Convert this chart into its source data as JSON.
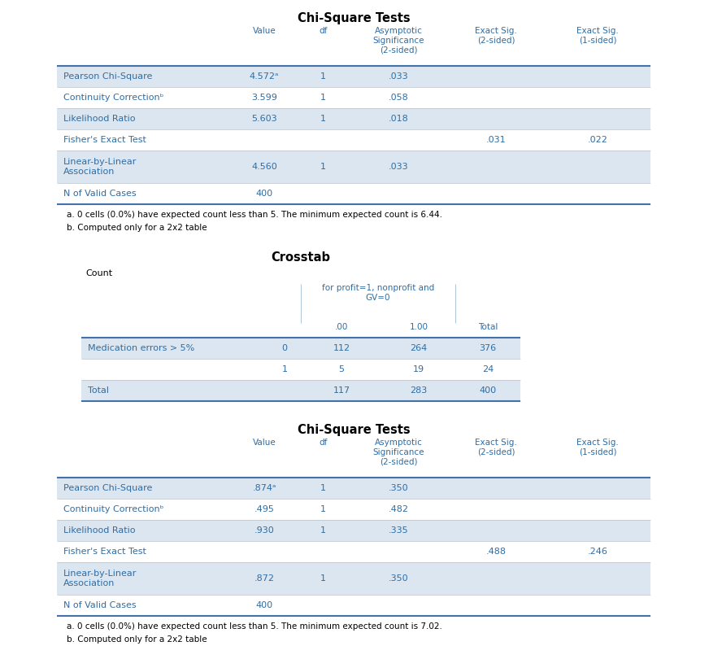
{
  "bg_color": "#ffffff",
  "text_color": "#2e6da4",
  "header_color": "#2e6da4",
  "title_color": "#000000",
  "row_bg_light": "#dce6f0",
  "row_bg_white": "#ffffff",
  "border_color_thick": "#4472a8",
  "border_color_thin": "#adc5d8",
  "table1_title": "Chi-Square Tests",
  "table1_rows": [
    [
      "Pearson Chi-Square",
      "4.572ᵃ",
      "1",
      ".033",
      "",
      ""
    ],
    [
      "Continuity Correctionᵇ",
      "3.599",
      "1",
      ".058",
      "",
      ""
    ],
    [
      "Likelihood Ratio",
      "5.603",
      "1",
      ".018",
      "",
      ""
    ],
    [
      "Fisher's Exact Test",
      "",
      "",
      "",
      ".031",
      ".022"
    ],
    [
      "Linear-by-Linear\nAssociation",
      "4.560",
      "1",
      ".033",
      "",
      ""
    ],
    [
      "N of Valid Cases",
      "400",
      "",
      "",
      "",
      ""
    ]
  ],
  "table1_notes": [
    "a. 0 cells (0.0%) have expected count less than 5. The minimum expected count is 6.44.",
    "b. Computed only for a 2x2 table"
  ],
  "table2_title": "Crosstab",
  "table2_subtitle": "Count",
  "table2_rows": [
    [
      "Medication errors > 5%",
      "0",
      "112",
      "264",
      "376"
    ],
    [
      "",
      "1",
      "5",
      "19",
      "24"
    ],
    [
      "Total",
      "",
      "117",
      "283",
      "400"
    ]
  ],
  "table3_title": "Chi-Square Tests",
  "table3_rows": [
    [
      "Pearson Chi-Square",
      ".874ᵃ",
      "1",
      ".350",
      "",
      ""
    ],
    [
      "Continuity Correctionᵇ",
      ".495",
      "1",
      ".482",
      "",
      ""
    ],
    [
      "Likelihood Ratio",
      ".930",
      "1",
      ".335",
      "",
      ""
    ],
    [
      "Fisher's Exact Test",
      "",
      "",
      "",
      ".488",
      ".246"
    ],
    [
      "Linear-by-Linear\nAssociation",
      ".872",
      "1",
      ".350",
      "",
      ""
    ],
    [
      "N of Valid Cases",
      "400",
      "",
      "",
      "",
      ""
    ]
  ],
  "table3_notes": [
    "a. 0 cells (0.0%) have expected count less than 5. The minimum expected count is 7.02.",
    "b. Computed only for a 2x2 table"
  ],
  "col_headers_chi": [
    "",
    "Value",
    "df",
    "Asymptotic\nSignificance\n(2-sided)",
    "Exact Sig.\n(2-sided)",
    "Exact Sig.\n(1-sided)"
  ]
}
